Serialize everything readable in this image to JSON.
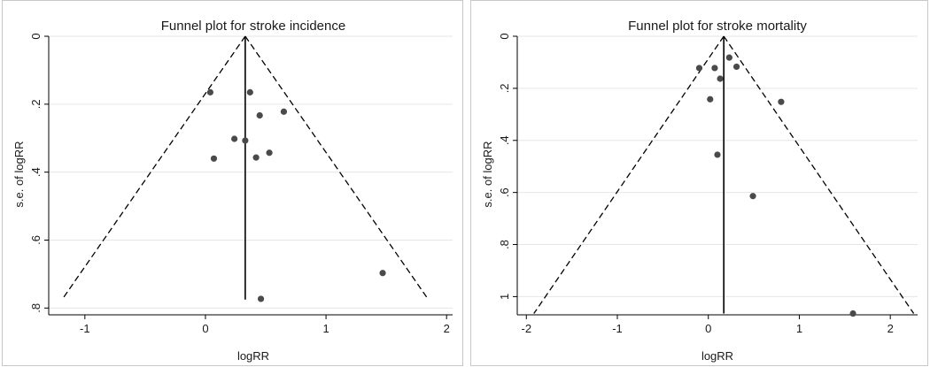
{
  "chart_data": [
    {
      "type": "scatter",
      "title": "Funnel plot for stroke incidence",
      "xlabel": "logRR",
      "ylabel": "s.e. of logRR",
      "xlim": [
        -1.3,
        2.05
      ],
      "ylim": [
        0,
        0.82
      ],
      "y_inverted": true,
      "xticks": [
        -1,
        0,
        1,
        2
      ],
      "xtick_labels": [
        "-1",
        "0",
        "1",
        "2"
      ],
      "yticks": [
        0,
        0.2,
        0.4,
        0.6,
        0.8
      ],
      "ytick_labels": [
        "0",
        ".2",
        ".4",
        ".6",
        ".8"
      ],
      "pooled_estimate": 0.33,
      "funnel_se_max": 0.775,
      "grid": true,
      "points": [
        {
          "x": 0.04,
          "y": 0.165
        },
        {
          "x": 0.37,
          "y": 0.165
        },
        {
          "x": 0.45,
          "y": 0.233
        },
        {
          "x": 0.65,
          "y": 0.222
        },
        {
          "x": 0.24,
          "y": 0.302
        },
        {
          "x": 0.33,
          "y": 0.307
        },
        {
          "x": 0.53,
          "y": 0.343
        },
        {
          "x": 0.42,
          "y": 0.357
        },
        {
          "x": 0.07,
          "y": 0.36
        },
        {
          "x": 1.47,
          "y": 0.697
        },
        {
          "x": 0.46,
          "y": 0.773
        }
      ]
    },
    {
      "type": "scatter",
      "title": "Funnel plot for stroke mortality",
      "xlabel": "logRR",
      "ylabel": "s.e. of logRR",
      "xlim": [
        -2.1,
        2.3
      ],
      "ylim": [
        0,
        1.07
      ],
      "y_inverted": true,
      "xticks": [
        -2,
        -1,
        0,
        1,
        2
      ],
      "xtick_labels": [
        "-2",
        "-1",
        "0",
        "1",
        "2"
      ],
      "yticks": [
        0,
        0.2,
        0.4,
        0.6,
        0.8,
        1
      ],
      "ytick_labels": [
        "0",
        ".2",
        ".4",
        ".6",
        ".8",
        "1"
      ],
      "pooled_estimate": 0.17,
      "funnel_se_max": 1.065,
      "grid": true,
      "points": [
        {
          "x": -0.1,
          "y": 0.122
        },
        {
          "x": 0.07,
          "y": 0.122
        },
        {
          "x": 0.23,
          "y": 0.082
        },
        {
          "x": 0.31,
          "y": 0.117
        },
        {
          "x": 0.13,
          "y": 0.163
        },
        {
          "x": 0.02,
          "y": 0.242
        },
        {
          "x": 0.8,
          "y": 0.252
        },
        {
          "x": 0.1,
          "y": 0.455
        },
        {
          "x": 0.49,
          "y": 0.614
        },
        {
          "x": 1.59,
          "y": 1.065
        }
      ]
    }
  ]
}
